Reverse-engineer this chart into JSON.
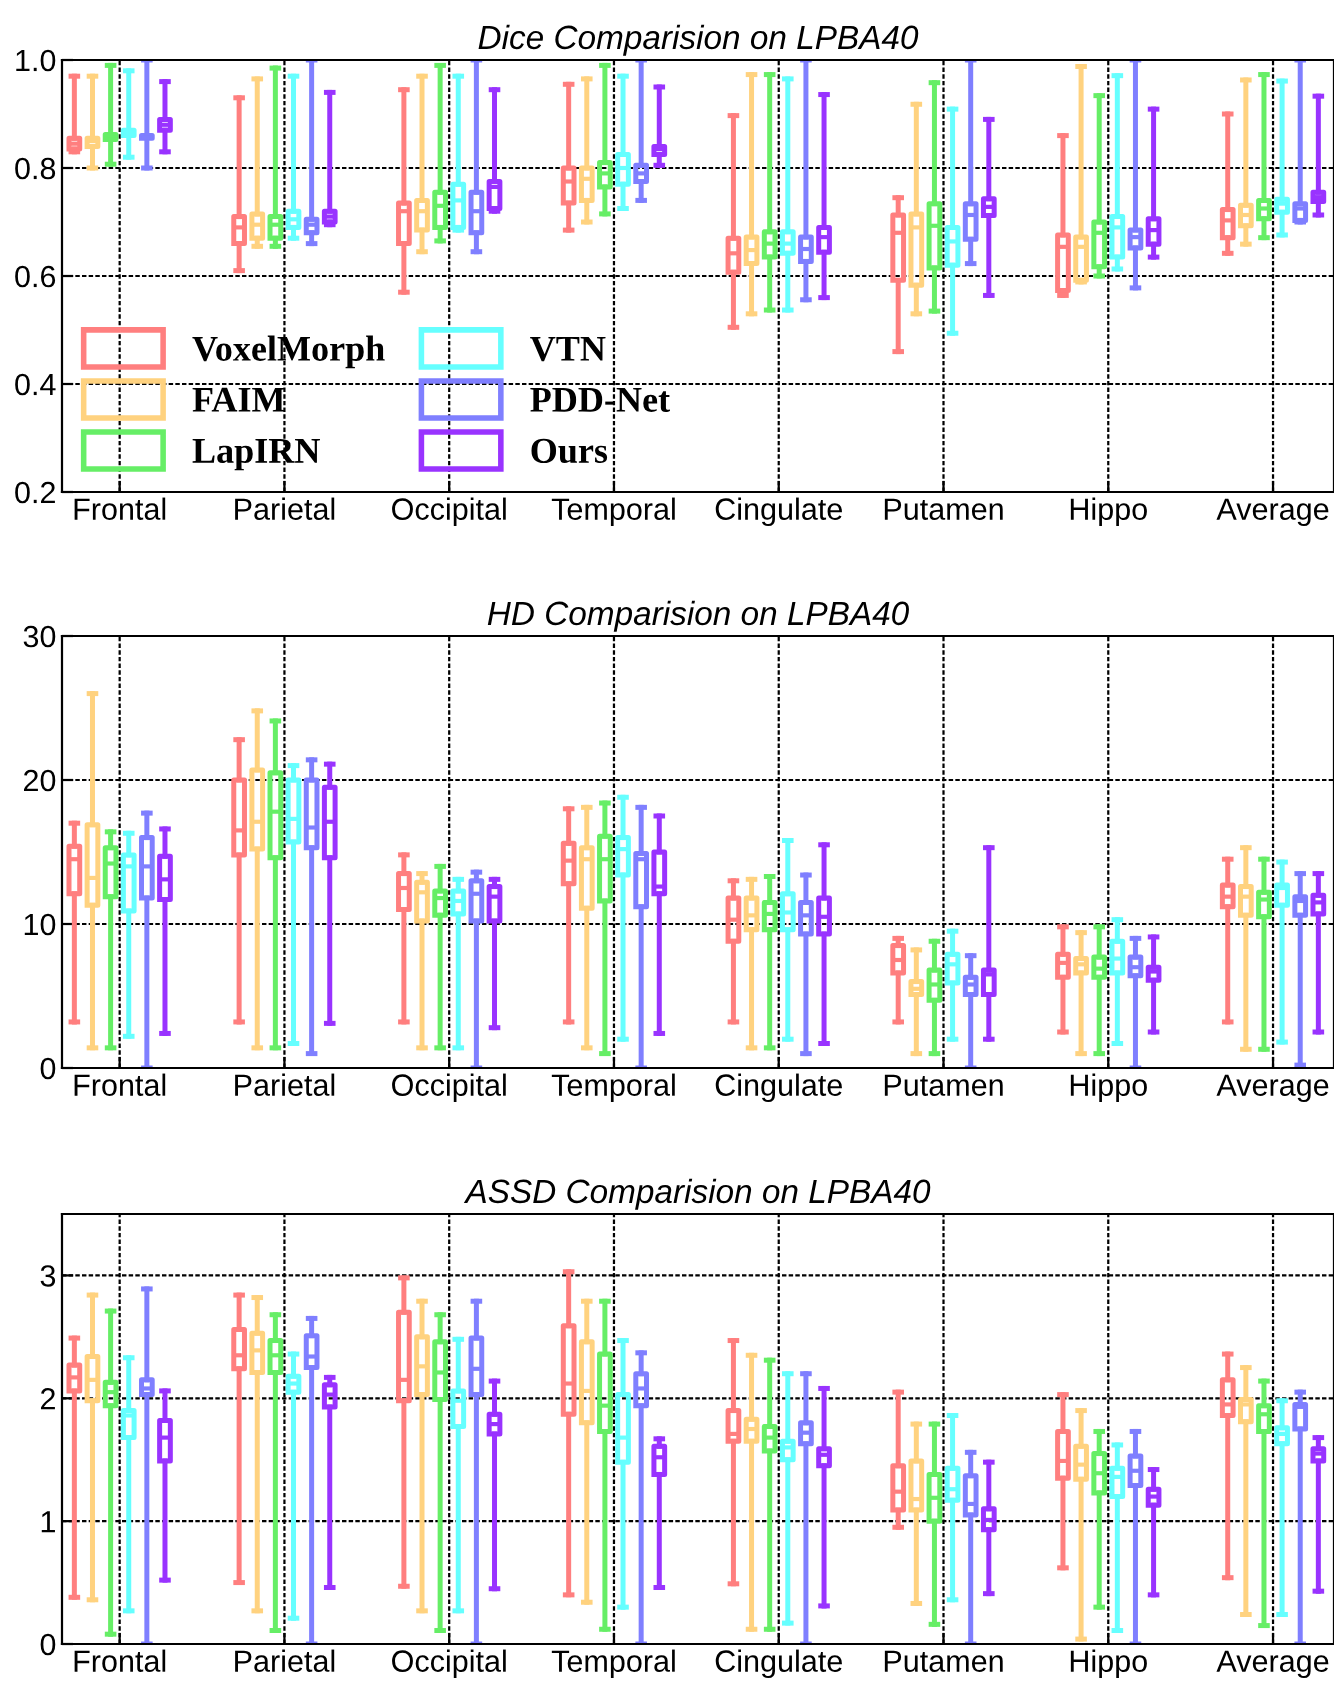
{
  "chart_data": [
    {
      "type": "box",
      "title": "Dice Comparision on LPBA40",
      "categories": [
        "Frontal",
        "Parietal",
        "Occipital",
        "Temporal",
        "Cingulate",
        "Putamen",
        "Hippo",
        "Average"
      ],
      "ylim": [
        0.2,
        1.0
      ],
      "yticks": [
        {
          "value": 0.2,
          "label": "0.2"
        },
        {
          "value": 0.4,
          "label": "0.4"
        },
        {
          "value": 0.6,
          "label": "0.6"
        },
        {
          "value": 0.8,
          "label": "0.8"
        },
        {
          "value": 1.0,
          "label": "1.0"
        }
      ],
      "grid": true,
      "legend": "bottom left",
      "series": [
        {
          "name": "VoxelMorph",
          "color": "#ff7f7f",
          "boxes": [
            {
              "low": 0.83,
              "q1": 0.835,
              "median": 0.845,
              "q3": 0.855,
              "high": 0.97
            },
            {
              "low": 0.61,
              "q1": 0.66,
              "median": 0.69,
              "q3": 0.71,
              "high": 0.93
            },
            {
              "low": 0.57,
              "q1": 0.66,
              "median": 0.72,
              "q3": 0.735,
              "high": 0.945
            },
            {
              "low": 0.685,
              "q1": 0.735,
              "median": 0.775,
              "q3": 0.8,
              "high": 0.955
            },
            {
              "low": 0.505,
              "q1": 0.607,
              "median": 0.642,
              "q3": 0.67,
              "high": 0.897
            },
            {
              "low": 0.46,
              "q1": 0.592,
              "median": 0.68,
              "q3": 0.713,
              "high": 0.745
            },
            {
              "low": 0.564,
              "q1": 0.573,
              "median": 0.654,
              "q3": 0.676,
              "high": 0.86
            },
            {
              "low": 0.642,
              "q1": 0.671,
              "median": 0.703,
              "q3": 0.723,
              "high": 0.9
            }
          ]
        },
        {
          "name": "FAIM",
          "color": "#ffd27f",
          "boxes": [
            {
              "low": 0.8,
              "q1": 0.84,
              "median": 0.85,
              "q3": 0.855,
              "high": 0.97
            },
            {
              "low": 0.655,
              "q1": 0.67,
              "median": 0.695,
              "q3": 0.715,
              "high": 0.965
            },
            {
              "low": 0.645,
              "q1": 0.685,
              "median": 0.72,
              "q3": 0.74,
              "high": 0.97
            },
            {
              "low": 0.7,
              "q1": 0.74,
              "median": 0.78,
              "q3": 0.8,
              "high": 0.965
            },
            {
              "low": 0.53,
              "q1": 0.623,
              "median": 0.648,
              "q3": 0.672,
              "high": 0.973
            },
            {
              "low": 0.53,
              "q1": 0.583,
              "median": 0.69,
              "q3": 0.715,
              "high": 0.918
            },
            {
              "low": 0.589,
              "q1": 0.592,
              "median": 0.654,
              "q3": 0.672,
              "high": 0.988
            },
            {
              "low": 0.659,
              "q1": 0.693,
              "median": 0.713,
              "q3": 0.731,
              "high": 0.963
            }
          ]
        },
        {
          "name": "LapIRN",
          "color": "#66ee66",
          "boxes": [
            {
              "low": 0.807,
              "q1": 0.853,
              "median": 0.86,
              "q3": 0.862,
              "high": 0.99
            },
            {
              "low": 0.655,
              "q1": 0.67,
              "median": 0.695,
              "q3": 0.71,
              "high": 0.985
            },
            {
              "low": 0.665,
              "q1": 0.69,
              "median": 0.73,
              "q3": 0.755,
              "high": 0.99
            },
            {
              "low": 0.715,
              "q1": 0.765,
              "median": 0.79,
              "q3": 0.81,
              "high": 0.99
            },
            {
              "low": 0.537,
              "q1": 0.635,
              "median": 0.66,
              "q3": 0.682,
              "high": 0.973
            },
            {
              "low": 0.535,
              "q1": 0.615,
              "median": 0.693,
              "q3": 0.734,
              "high": 0.958
            },
            {
              "low": 0.6,
              "q1": 0.617,
              "median": 0.68,
              "q3": 0.7,
              "high": 0.934
            },
            {
              "low": 0.671,
              "q1": 0.706,
              "median": 0.725,
              "q3": 0.74,
              "high": 0.973
            }
          ]
        },
        {
          "name": "VTN",
          "color": "#66ffff",
          "boxes": [
            {
              "low": 0.82,
              "q1": 0.86,
              "median": 0.865,
              "q3": 0.87,
              "high": 0.98
            },
            {
              "low": 0.67,
              "q1": 0.69,
              "median": 0.705,
              "q3": 0.72,
              "high": 0.97
            },
            {
              "low": 0.685,
              "q1": 0.69,
              "median": 0.74,
              "q3": 0.77,
              "high": 0.97
            },
            {
              "low": 0.725,
              "q1": 0.77,
              "median": 0.8,
              "q3": 0.825,
              "high": 0.97
            },
            {
              "low": 0.537,
              "q1": 0.642,
              "median": 0.66,
              "q3": 0.682,
              "high": 0.965
            },
            {
              "low": 0.494,
              "q1": 0.62,
              "median": 0.664,
              "q3": 0.69,
              "high": 0.909
            },
            {
              "low": 0.613,
              "q1": 0.635,
              "median": 0.69,
              "q3": 0.71,
              "high": 0.971
            },
            {
              "low": 0.676,
              "q1": 0.718,
              "median": 0.734,
              "q3": 0.742,
              "high": 0.961
            }
          ]
        },
        {
          "name": "PDD-Net",
          "color": "#7f7fff",
          "boxes": [
            {
              "low": 0.8,
              "q1": 0.855,
              "median": 0.857,
              "q3": 0.86,
              "high": 1.0
            },
            {
              "low": 0.66,
              "q1": 0.68,
              "median": 0.695,
              "q3": 0.705,
              "high": 1.0
            },
            {
              "low": 0.645,
              "q1": 0.68,
              "median": 0.72,
              "q3": 0.755,
              "high": 1.0
            },
            {
              "low": 0.74,
              "q1": 0.775,
              "median": 0.79,
              "q3": 0.805,
              "high": 1.0
            },
            {
              "low": 0.556,
              "q1": 0.627,
              "median": 0.65,
              "q3": 0.672,
              "high": 1.0
            },
            {
              "low": 0.623,
              "q1": 0.668,
              "median": 0.713,
              "q3": 0.734,
              "high": 1.0
            },
            {
              "low": 0.578,
              "q1": 0.652,
              "median": 0.672,
              "q3": 0.685,
              "high": 1.0
            },
            {
              "low": 0.7,
              "q1": 0.703,
              "median": 0.725,
              "q3": 0.734,
              "high": 1.0
            }
          ]
        },
        {
          "name": "Ours",
          "color": "#9933ff",
          "boxes": [
            {
              "low": 0.83,
              "q1": 0.87,
              "median": 0.88,
              "q3": 0.89,
              "high": 0.96
            },
            {
              "low": 0.695,
              "q1": 0.7,
              "median": 0.71,
              "q3": 0.72,
              "high": 0.94
            },
            {
              "low": 0.72,
              "q1": 0.725,
              "median": 0.765,
              "q3": 0.775,
              "high": 0.945
            },
            {
              "low": 0.805,
              "q1": 0.825,
              "median": 0.835,
              "q3": 0.84,
              "high": 0.95
            },
            {
              "low": 0.56,
              "q1": 0.644,
              "median": 0.672,
              "q3": 0.69,
              "high": 0.936
            },
            {
              "low": 0.564,
              "q1": 0.712,
              "median": 0.728,
              "q3": 0.743,
              "high": 0.89
            },
            {
              "low": 0.635,
              "q1": 0.659,
              "median": 0.685,
              "q3": 0.706,
              "high": 0.909
            },
            {
              "low": 0.713,
              "q1": 0.738,
              "median": 0.746,
              "q3": 0.755,
              "high": 0.933
            }
          ]
        }
      ]
    },
    {
      "type": "box",
      "title": "HD Comparision on LPBA40",
      "categories": [
        "Frontal",
        "Parietal",
        "Occipital",
        "Temporal",
        "Cingulate",
        "Putamen",
        "Hippo",
        "Average"
      ],
      "ylim": [
        0,
        30
      ],
      "yticks": [
        0,
        10,
        20,
        30
      ],
      "grid": true,
      "series": [
        {
          "color": "#ff7f7f",
          "boxes": [
            {
              "low": 3.2,
              "q1": 12.1,
              "median": 14.5,
              "q3": 15.4,
              "high": 17.0
            },
            {
              "low": 3.2,
              "q1": 14.8,
              "median": 16.5,
              "q3": 20.0,
              "high": 22.8
            },
            {
              "low": 3.2,
              "q1": 11.0,
              "median": 12.5,
              "q3": 13.5,
              "high": 14.8
            },
            {
              "low": 3.2,
              "q1": 12.8,
              "median": 14.4,
              "q3": 15.6,
              "high": 18.0
            },
            {
              "low": 3.2,
              "q1": 8.8,
              "median": 10.3,
              "q3": 11.8,
              "high": 13.0
            },
            {
              "low": 3.2,
              "q1": 6.6,
              "median": 7.5,
              "q3": 8.5,
              "high": 9.0
            },
            {
              "low": 2.5,
              "q1": 6.3,
              "median": 7.3,
              "q3": 7.9,
              "high": 9.8
            },
            {
              "low": 3.2,
              "q1": 11.2,
              "median": 11.9,
              "q3": 12.7,
              "high": 14.5
            }
          ]
        },
        {
          "color": "#ffd27f",
          "boxes": [
            {
              "low": 1.4,
              "q1": 11.3,
              "median": 13.2,
              "q3": 16.9,
              "high": 26.0
            },
            {
              "low": 1.4,
              "q1": 15.2,
              "median": 17.1,
              "q3": 20.7,
              "high": 24.8
            },
            {
              "low": 1.4,
              "q1": 10.2,
              "median": 12.2,
              "q3": 12.9,
              "high": 13.5
            },
            {
              "low": 1.4,
              "q1": 11.1,
              "median": 14.5,
              "q3": 15.3,
              "high": 18.1
            },
            {
              "low": 1.4,
              "q1": 9.6,
              "median": 10.6,
              "q3": 11.8,
              "high": 13.1
            },
            {
              "low": 1.0,
              "q1": 5.1,
              "median": 5.5,
              "q3": 6.0,
              "high": 8.2
            },
            {
              "low": 1.0,
              "q1": 6.6,
              "median": 7.2,
              "q3": 7.6,
              "high": 9.4
            },
            {
              "low": 1.3,
              "q1": 10.6,
              "median": 11.9,
              "q3": 12.6,
              "high": 15.3
            }
          ]
        },
        {
          "color": "#66ee66",
          "boxes": [
            {
              "low": 1.4,
              "q1": 11.9,
              "median": 14.2,
              "q3": 15.3,
              "high": 16.4
            },
            {
              "low": 1.4,
              "q1": 14.6,
              "median": 17.8,
              "q3": 20.5,
              "high": 24.1
            },
            {
              "low": 1.4,
              "q1": 10.6,
              "median": 11.8,
              "q3": 12.3,
              "high": 14.0
            },
            {
              "low": 1.0,
              "q1": 11.6,
              "median": 14.5,
              "q3": 16.1,
              "high": 18.4
            },
            {
              "low": 1.4,
              "q1": 9.6,
              "median": 10.7,
              "q3": 11.5,
              "high": 13.3
            },
            {
              "low": 1.0,
              "q1": 4.7,
              "median": 5.8,
              "q3": 6.8,
              "high": 8.8
            },
            {
              "low": 1.0,
              "q1": 6.3,
              "median": 6.9,
              "q3": 7.7,
              "high": 9.8
            },
            {
              "low": 1.3,
              "q1": 10.5,
              "median": 11.7,
              "q3": 12.2,
              "high": 14.5
            }
          ]
        },
        {
          "color": "#66ffff",
          "boxes": [
            {
              "low": 2.2,
              "q1": 10.9,
              "median": 14.0,
              "q3": 14.8,
              "high": 16.3
            },
            {
              "low": 1.7,
              "q1": 15.7,
              "median": 17.3,
              "q3": 20.0,
              "high": 21.0
            },
            {
              "low": 1.4,
              "q1": 10.7,
              "median": 11.6,
              "q3": 12.3,
              "high": 13.1
            },
            {
              "low": 2.0,
              "q1": 13.4,
              "median": 15.2,
              "q3": 16.0,
              "high": 18.8
            },
            {
              "low": 2.0,
              "q1": 9.6,
              "median": 10.8,
              "q3": 12.1,
              "high": 15.8
            },
            {
              "low": 2.0,
              "q1": 5.9,
              "median": 7.2,
              "q3": 7.9,
              "high": 9.5
            },
            {
              "low": 1.7,
              "q1": 6.6,
              "median": 7.6,
              "q3": 8.8,
              "high": 10.3
            },
            {
              "low": 1.8,
              "q1": 11.3,
              "median": 12.5,
              "q3": 12.7,
              "high": 14.3
            }
          ]
        },
        {
          "color": "#7f7fff",
          "boxes": [
            {
              "low": 0,
              "q1": 11.8,
              "median": 14.0,
              "q3": 16.0,
              "high": 17.7
            },
            {
              "low": 1.0,
              "q1": 15.3,
              "median": 16.7,
              "q3": 20.0,
              "high": 21.4
            },
            {
              "low": 0,
              "q1": 10.2,
              "median": 12.1,
              "q3": 13.0,
              "high": 13.6
            },
            {
              "low": 0,
              "q1": 11.2,
              "median": 14.5,
              "q3": 14.9,
              "high": 18.1
            },
            {
              "low": 1.0,
              "q1": 9.3,
              "median": 10.6,
              "q3": 11.5,
              "high": 13.4
            },
            {
              "low": 0,
              "q1": 5.1,
              "median": 5.8,
              "q3": 6.3,
              "high": 7.8
            },
            {
              "low": 0,
              "q1": 6.4,
              "median": 7.0,
              "q3": 7.7,
              "high": 9.0
            },
            {
              "low": 0.2,
              "q1": 10.6,
              "median": 11.6,
              "q3": 11.9,
              "high": 13.5
            }
          ]
        },
        {
          "color": "#9933ff",
          "boxes": [
            {
              "low": 2.4,
              "q1": 11.7,
              "median": 13.1,
              "q3": 14.7,
              "high": 16.6
            },
            {
              "low": 3.1,
              "q1": 14.6,
              "median": 17.1,
              "q3": 19.5,
              "high": 21.1
            },
            {
              "low": 2.8,
              "q1": 10.2,
              "median": 11.9,
              "q3": 12.6,
              "high": 13.1
            },
            {
              "low": 2.4,
              "q1": 12.1,
              "median": 12.6,
              "q3": 15.0,
              "high": 17.5
            },
            {
              "low": 1.7,
              "q1": 9.3,
              "median": 10.5,
              "q3": 11.8,
              "high": 15.5
            },
            {
              "low": 2.0,
              "q1": 5.1,
              "median": 6.5,
              "q3": 6.8,
              "high": 15.3
            },
            {
              "low": 2.5,
              "q1": 6.1,
              "median": 6.7,
              "q3": 7.0,
              "high": 9.1
            },
            {
              "low": 2.5,
              "q1": 10.7,
              "median": 11.5,
              "q3": 12.0,
              "high": 13.5
            }
          ]
        }
      ]
    },
    {
      "type": "box",
      "title": "ASSD Comparision on LPBA40",
      "categories": [
        "Frontal",
        "Parietal",
        "Occipital",
        "Temporal",
        "Cingulate",
        "Putamen",
        "Hippo",
        "Average"
      ],
      "ylim": [
        0,
        3.5
      ],
      "yticks": [
        0,
        1,
        2,
        3
      ],
      "grid": true,
      "series": [
        {
          "color": "#ff7f7f",
          "boxes": [
            {
              "low": 0.38,
              "q1": 2.06,
              "median": 2.17,
              "q3": 2.27,
              "high": 2.49
            },
            {
              "low": 0.5,
              "q1": 2.24,
              "median": 2.35,
              "q3": 2.56,
              "high": 2.84
            },
            {
              "low": 0.47,
              "q1": 1.98,
              "median": 2.15,
              "q3": 2.7,
              "high": 2.98
            },
            {
              "low": 0.4,
              "q1": 1.87,
              "median": 2.12,
              "q3": 2.59,
              "high": 3.03
            },
            {
              "low": 0.49,
              "q1": 1.65,
              "median": 1.71,
              "q3": 1.9,
              "high": 2.47
            },
            {
              "low": 0.95,
              "q1": 1.09,
              "median": 1.24,
              "q3": 1.45,
              "high": 2.05
            },
            {
              "low": 0.62,
              "q1": 1.35,
              "median": 1.49,
              "q3": 1.73,
              "high": 2.03
            },
            {
              "low": 0.54,
              "q1": 1.86,
              "median": 1.95,
              "q3": 2.15,
              "high": 2.36
            }
          ]
        },
        {
          "color": "#ffd27f",
          "boxes": [
            {
              "low": 0.36,
              "q1": 1.98,
              "median": 2.15,
              "q3": 2.34,
              "high": 2.84
            },
            {
              "low": 0.27,
              "q1": 2.21,
              "median": 2.39,
              "q3": 2.53,
              "high": 2.82
            },
            {
              "low": 0.27,
              "q1": 2.03,
              "median": 2.26,
              "q3": 2.5,
              "high": 2.79
            },
            {
              "low": 0.34,
              "q1": 1.8,
              "median": 2.06,
              "q3": 2.46,
              "high": 2.79
            },
            {
              "low": 0.12,
              "q1": 1.65,
              "median": 1.75,
              "q3": 1.83,
              "high": 2.35
            },
            {
              "low": 0.33,
              "q1": 1.09,
              "median": 1.18,
              "q3": 1.49,
              "high": 1.79
            },
            {
              "low": 0.04,
              "q1": 1.34,
              "median": 1.46,
              "q3": 1.61,
              "high": 1.9
            },
            {
              "low": 0.24,
              "q1": 1.81,
              "median": 1.95,
              "q3": 1.99,
              "high": 2.25
            }
          ]
        },
        {
          "color": "#66ee66",
          "boxes": [
            {
              "low": 0.08,
              "q1": 1.94,
              "median": 2.05,
              "q3": 2.13,
              "high": 2.71
            },
            {
              "low": 0.11,
              "q1": 2.21,
              "median": 2.35,
              "q3": 2.47,
              "high": 2.68
            },
            {
              "low": 0.11,
              "q1": 1.99,
              "median": 2.21,
              "q3": 2.46,
              "high": 2.68
            },
            {
              "low": 0.12,
              "q1": 1.73,
              "median": 1.94,
              "q3": 2.36,
              "high": 2.79
            },
            {
              "low": 0.12,
              "q1": 1.57,
              "median": 1.68,
              "q3": 1.77,
              "high": 2.31
            },
            {
              "low": 0.16,
              "q1": 1.0,
              "median": 1.19,
              "q3": 1.38,
              "high": 1.79
            },
            {
              "low": 0.3,
              "q1": 1.23,
              "median": 1.39,
              "q3": 1.55,
              "high": 1.73
            },
            {
              "low": 0.15,
              "q1": 1.73,
              "median": 1.87,
              "q3": 1.94,
              "high": 2.14
            }
          ]
        },
        {
          "color": "#66ffff",
          "boxes": [
            {
              "low": 0.27,
              "q1": 1.68,
              "median": 1.86,
              "q3": 1.9,
              "high": 2.33
            },
            {
              "low": 0.21,
              "q1": 2.05,
              "median": 2.12,
              "q3": 2.18,
              "high": 2.36
            },
            {
              "low": 0.27,
              "q1": 1.77,
              "median": 1.98,
              "q3": 2.06,
              "high": 2.48
            },
            {
              "low": 0.3,
              "q1": 1.48,
              "median": 1.68,
              "q3": 2.03,
              "high": 2.47
            },
            {
              "low": 0.17,
              "q1": 1.5,
              "median": 1.6,
              "q3": 1.65,
              "high": 2.2
            },
            {
              "low": 0.36,
              "q1": 1.17,
              "median": 1.26,
              "q3": 1.43,
              "high": 1.86
            },
            {
              "low": 0.11,
              "q1": 1.2,
              "median": 1.36,
              "q3": 1.43,
              "high": 1.62
            },
            {
              "low": 0.24,
              "q1": 1.63,
              "median": 1.71,
              "q3": 1.76,
              "high": 1.98
            }
          ]
        },
        {
          "color": "#7f7fff",
          "boxes": [
            {
              "low": 0,
              "q1": 2.03,
              "median": 2.08,
              "q3": 2.15,
              "high": 2.89
            },
            {
              "low": 0,
              "q1": 2.25,
              "median": 2.34,
              "q3": 2.51,
              "high": 2.65
            },
            {
              "low": 0,
              "q1": 2.03,
              "median": 2.24,
              "q3": 2.49,
              "high": 2.79
            },
            {
              "low": 0,
              "q1": 1.94,
              "median": 2.08,
              "q3": 2.2,
              "high": 2.37
            },
            {
              "low": 0,
              "q1": 1.63,
              "median": 1.72,
              "q3": 1.8,
              "high": 2.2
            },
            {
              "low": 0,
              "q1": 1.05,
              "median": 1.14,
              "q3": 1.37,
              "high": 1.56
            },
            {
              "low": 0,
              "q1": 1.29,
              "median": 1.41,
              "q3": 1.53,
              "high": 1.73
            },
            {
              "low": 0,
              "q1": 1.75,
              "median": 1.93,
              "q3": 1.95,
              "high": 2.05
            }
          ]
        },
        {
          "color": "#9933ff",
          "boxes": [
            {
              "low": 0.52,
              "q1": 1.49,
              "median": 1.68,
              "q3": 1.82,
              "high": 2.06
            },
            {
              "low": 0.46,
              "q1": 1.93,
              "median": 2.03,
              "q3": 2.11,
              "high": 2.17
            },
            {
              "low": 0.45,
              "q1": 1.71,
              "median": 1.79,
              "q3": 1.87,
              "high": 2.14
            },
            {
              "low": 0.46,
              "q1": 1.38,
              "median": 1.52,
              "q3": 1.61,
              "high": 1.67
            },
            {
              "low": 0.31,
              "q1": 1.45,
              "median": 1.54,
              "q3": 1.59,
              "high": 2.08
            },
            {
              "low": 0.41,
              "q1": 0.93,
              "median": 1.01,
              "q3": 1.1,
              "high": 1.48
            },
            {
              "low": 0.4,
              "q1": 1.13,
              "median": 1.2,
              "q3": 1.26,
              "high": 1.42
            },
            {
              "low": 0.43,
              "q1": 1.49,
              "median": 1.55,
              "q3": 1.59,
              "high": 1.68
            }
          ]
        }
      ]
    }
  ]
}
